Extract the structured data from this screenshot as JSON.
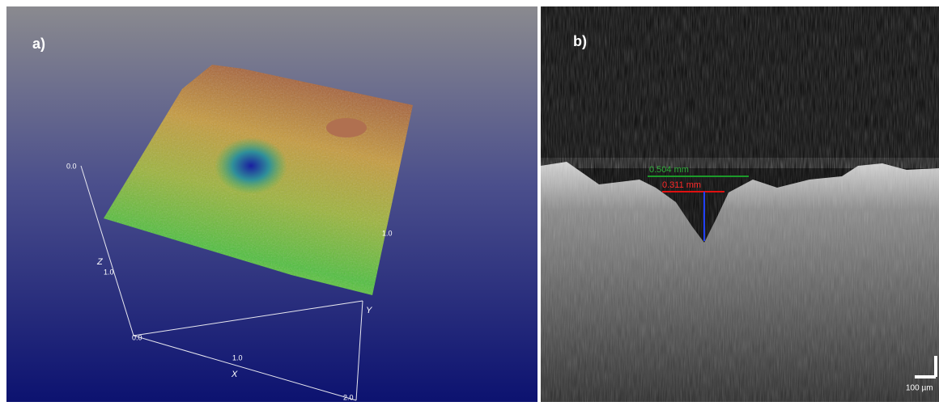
{
  "panel_a": {
    "label": "a)",
    "axes": {
      "z_title": "Z",
      "x_title": "X",
      "y_title": "Y",
      "z_ticks": [
        "0.0",
        "1.0"
      ],
      "x_ticks": [
        "0.0",
        "1.0"
      ],
      "y_ticks": [
        "1.0",
        "2.0"
      ]
    }
  },
  "panel_b": {
    "label": "b)",
    "measurements": [
      "0.504 mm",
      "0.311 mm"
    ],
    "scale_bar": "100 µm"
  }
}
